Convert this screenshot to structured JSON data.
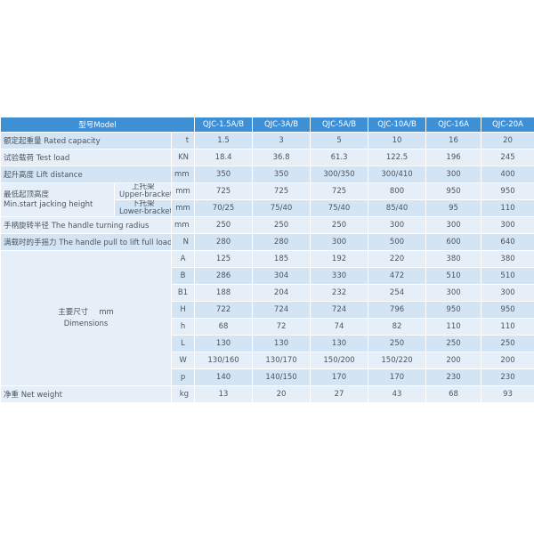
{
  "table": {
    "header": {
      "label": "型号Model",
      "models": [
        "QJC-1.5A/B",
        "QJC-3A/B",
        "QJC-5A/B",
        "QJC-10A/B",
        "QJC-16A",
        "QJC-20A"
      ]
    },
    "rows": [
      {
        "label": "额定起重量 Rated capacity",
        "unit": "t",
        "values": [
          "1.5",
          "3",
          "5",
          "10",
          "16",
          "20"
        ]
      },
      {
        "label": "试验载荷   Test load",
        "unit": "KN",
        "values": [
          "18.4",
          "36.8",
          "61.3",
          "122.5",
          "196",
          "245"
        ]
      },
      {
        "label": "起升高度 Lift distance",
        "unit": "mm",
        "values": [
          "350",
          "350",
          "300/350",
          "300/410",
          "300",
          "400"
        ]
      },
      {
        "label": "最低起顶高度",
        "label_en": "Min.start jacking height",
        "sub": [
          {
            "label": "上托架",
            "label_en": "Upper-bracket",
            "unit": "mm",
            "values": [
              "725",
              "725",
              "725",
              "800",
              "950",
              "950"
            ]
          },
          {
            "label": "下托架",
            "label_en": "Lower-bracket",
            "unit": "mm",
            "values": [
              "70/25",
              "75/40",
              "75/40",
              "85/40",
              "95",
              "110"
            ]
          }
        ]
      },
      {
        "label": "手柄旋转半径 The handle turning radius",
        "unit": "mm",
        "values": [
          "250",
          "250",
          "250",
          "300",
          "300",
          "300"
        ]
      },
      {
        "label": "满载时的手摇力 The handle pull to lift full load",
        "unit": "N",
        "values": [
          "280",
          "280",
          "300",
          "500",
          "600",
          "640"
        ]
      },
      {
        "label": "主要尺寸",
        "unit": "mm",
        "label_en": "Dimensions",
        "items": [
          {
            "key": "A",
            "values": [
              "125",
              "185",
              "192",
              "220",
              "380",
              "380"
            ]
          },
          {
            "key": "B",
            "values": [
              "286",
              "304",
              "330",
              "472",
              "510",
              "510"
            ]
          },
          {
            "key": "B1",
            "values": [
              "188",
              "204",
              "232",
              "254",
              "300",
              "300"
            ]
          },
          {
            "key": "H",
            "values": [
              "722",
              "724",
              "724",
              "796",
              "950",
              "950"
            ]
          },
          {
            "key": "h",
            "values": [
              "68",
              "72",
              "74",
              "82",
              "110",
              "110"
            ]
          },
          {
            "key": "L",
            "values": [
              "130",
              "130",
              "130",
              "250",
              "250",
              "250"
            ]
          },
          {
            "key": "W",
            "values": [
              "130/160",
              "130/170",
              "150/200",
              "150/220",
              "200",
              "200"
            ]
          },
          {
            "key": "p",
            "values": [
              "140",
              "140/150",
              "170",
              "170",
              "230",
              "230"
            ]
          }
        ]
      },
      {
        "label": "净重 Net weight",
        "unit": "kg",
        "values": [
          "13",
          "20",
          "27",
          "43",
          "68",
          "93"
        ]
      }
    ]
  }
}
